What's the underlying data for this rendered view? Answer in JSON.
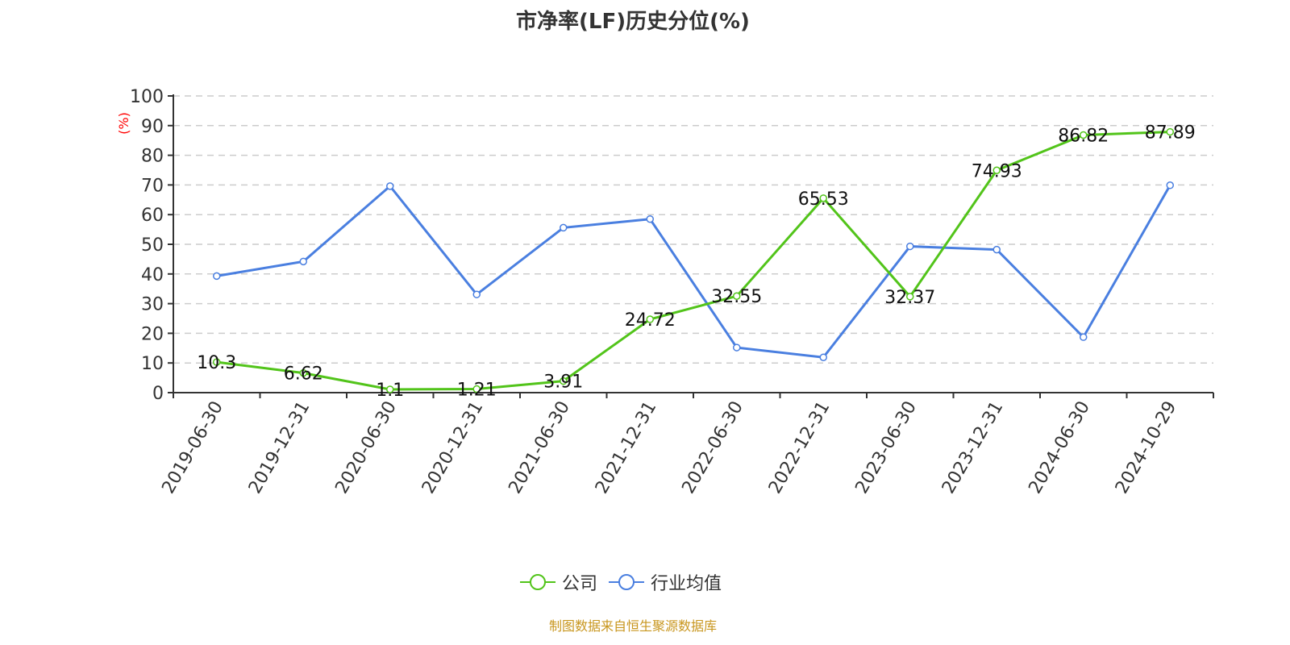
{
  "chart_data": {
    "type": "line",
    "title": "市净率(LF)历史分位(%)",
    "ylabel": "(%)",
    "ylim": [
      0,
      100
    ],
    "yticks": [
      0,
      10,
      20,
      30,
      40,
      50,
      60,
      70,
      80,
      90,
      100
    ],
    "grid": true,
    "legend_position": "bottom",
    "categories": [
      "2019-06-30",
      "2019-12-31",
      "2020-06-30",
      "2020-12-31",
      "2021-06-30",
      "2021-12-31",
      "2022-06-30",
      "2022-12-31",
      "2023-06-30",
      "2023-12-31",
      "2024-06-30",
      "2024-10-29"
    ],
    "series": [
      {
        "name": "公司",
        "color": "#52c41a",
        "labels": true,
        "values": [
          10.3,
          6.62,
          1.1,
          1.21,
          3.91,
          24.72,
          32.55,
          65.53,
          32.37,
          74.93,
          86.82,
          87.89
        ]
      },
      {
        "name": "行业均值",
        "color": "#4a7fe0",
        "labels": false,
        "values": [
          39.3,
          44.2,
          69.6,
          33.1,
          55.6,
          58.5,
          15.2,
          11.9,
          49.3,
          48.2,
          18.7,
          69.9
        ]
      }
    ]
  },
  "source": "制图数据来自恒生聚源数据库"
}
